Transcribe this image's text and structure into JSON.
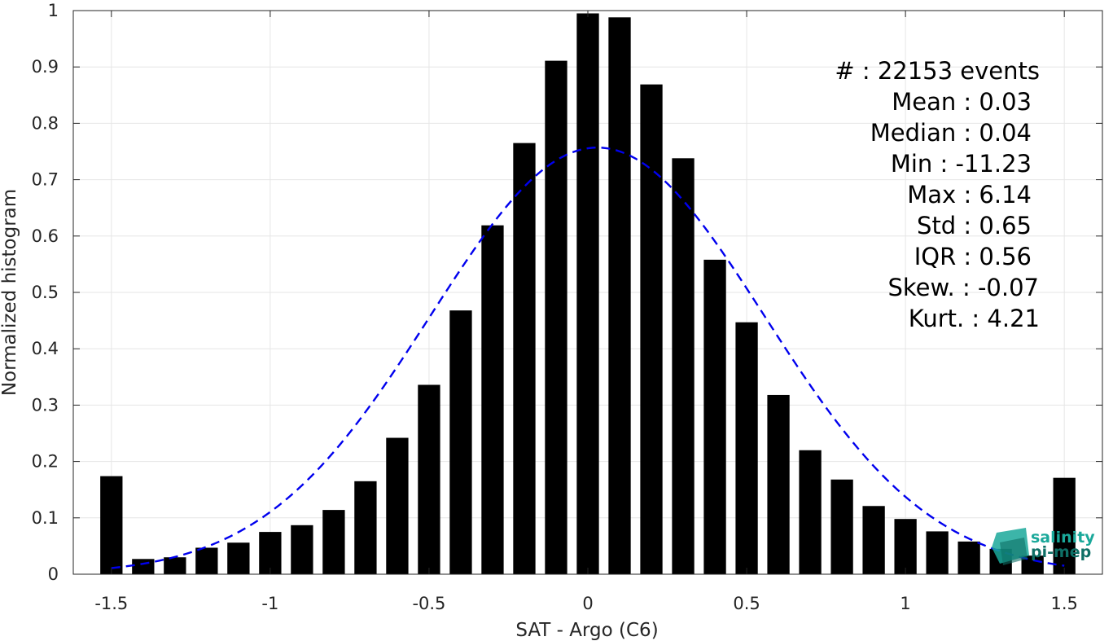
{
  "chart_data": {
    "type": "bar",
    "xlabel": "SAT - Argo (C6)",
    "ylabel": "Normalized histogram",
    "xlim": [
      -1.62,
      1.62
    ],
    "ylim": [
      0,
      1
    ],
    "grid": true,
    "x_ticks": [
      -1.5,
      -1,
      -0.5,
      0,
      0.5,
      1,
      1.5
    ],
    "x_tick_labels": [
      "-1.5",
      "-1",
      "-0.5",
      "0",
      "0.5",
      "1",
      "1.5"
    ],
    "y_ticks": [
      0,
      0.1,
      0.2,
      0.3,
      0.4,
      0.5,
      0.6,
      0.7,
      0.8,
      0.9,
      1
    ],
    "y_tick_labels": [
      "0",
      "0.1",
      "0.2",
      "0.3",
      "0.4",
      "0.5",
      "0.6",
      "0.7",
      "0.8",
      "0.9",
      "1"
    ],
    "bar_width": 0.07,
    "bars": {
      "x": [
        -1.5,
        -1.4,
        -1.3,
        -1.2,
        -1.1,
        -1.0,
        -0.9,
        -0.8,
        -0.7,
        -0.6,
        -0.5,
        -0.4,
        -0.3,
        -0.2,
        -0.1,
        0.0,
        0.1,
        0.2,
        0.3,
        0.4,
        0.5,
        0.6,
        0.7,
        0.8,
        0.9,
        1.0,
        1.1,
        1.2,
        1.3,
        1.4,
        1.5
      ],
      "values": [
        0.174,
        0.027,
        0.03,
        0.047,
        0.056,
        0.075,
        0.087,
        0.114,
        0.165,
        0.242,
        0.336,
        0.468,
        0.619,
        0.765,
        0.911,
        0.995,
        0.988,
        0.869,
        0.738,
        0.558,
        0.447,
        0.318,
        0.22,
        0.168,
        0.121,
        0.098,
        0.076,
        0.058,
        0.045,
        0.033,
        0.171
      ],
      "color": "#000000"
    },
    "fit_curve": {
      "style": "dashed",
      "color": "#0000ee",
      "x_range": [
        -1.5,
        1.5
      ],
      "peak": 0.757,
      "mean": 0.03,
      "std": 0.525
    },
    "stats": [
      {
        "label": "#  : 22153 events"
      },
      {
        "label": "Mean : 0.03"
      },
      {
        "label": "Median : 0.04"
      },
      {
        "label": "Min : -11.23"
      },
      {
        "label": "Max : 6.14"
      },
      {
        "label": "Std : 0.65"
      },
      {
        "label": "IQR : 0.56"
      },
      {
        "label": "Skew. : -0.07"
      },
      {
        "label": "Kurt. : 4.21"
      }
    ]
  },
  "logo": {
    "line1": "salinity",
    "line2": "pi-mep",
    "color": "#1aa89a"
  }
}
